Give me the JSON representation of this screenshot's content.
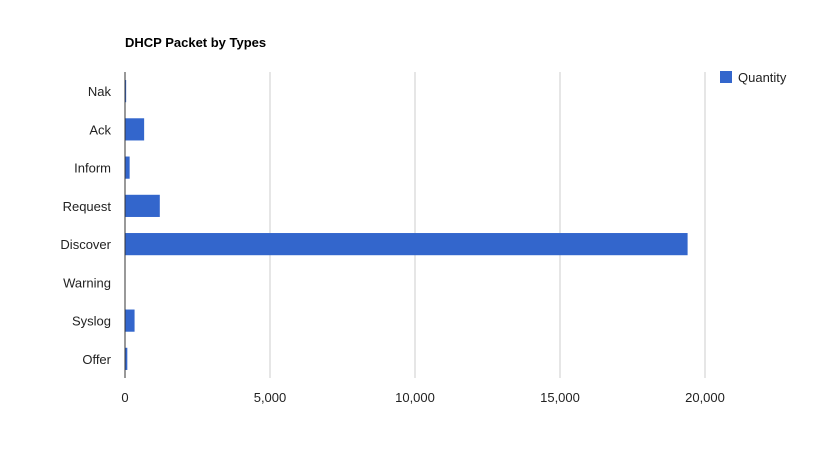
{
  "chart_data": {
    "type": "bar",
    "orientation": "horizontal",
    "title": "DHCP Packet by Types",
    "categories": [
      "Nak",
      "Ack",
      "Inform",
      "Request",
      "Discover",
      "Warning",
      "Syslog",
      "Offer"
    ],
    "series": [
      {
        "name": "Quantity",
        "color": "#3366cc",
        "values": [
          40,
          660,
          160,
          1200,
          19400,
          10,
          330,
          80
        ]
      }
    ],
    "xlim": [
      0,
      20000
    ],
    "xticks": [
      0,
      5000,
      10000,
      15000,
      20000
    ],
    "xtick_labels": [
      "0",
      "5,000",
      "10,000",
      "15,000",
      "20,000"
    ],
    "grid": true,
    "legend": "right"
  }
}
